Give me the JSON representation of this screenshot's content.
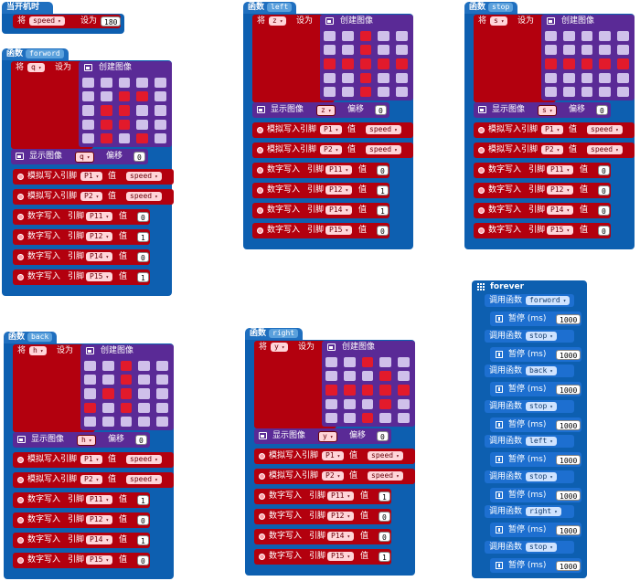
{
  "labels": {
    "set": "将",
    "set_to": "设为",
    "create_image": "创建图像",
    "show_image": "显示图像",
    "offset": "偏移",
    "analog_write_pin": "模拟写入引脚",
    "value": "值",
    "digital_write": "数字写入",
    "pin": "引脚",
    "call_function": "调用函数",
    "pause": "暂停 (ms)",
    "function": "函数",
    "dropdown_arrow": "▾"
  },
  "start": {
    "title": "当开机时",
    "variable": "speed",
    "value": "180"
  },
  "functions": [
    {
      "name": "forword",
      "variable": "q",
      "pattern": "0000000110011000110001010",
      "p1": "speed",
      "p2": "speed",
      "digital": [
        {
          "pin": "P11",
          "val": "0"
        },
        {
          "pin": "P12",
          "val": "1"
        },
        {
          "pin": "P14",
          "val": "0"
        },
        {
          "pin": "P15",
          "val": "1"
        }
      ]
    },
    {
      "name": "left",
      "variable": "z",
      "pattern": "0010000100111110010000100",
      "p1": "speed",
      "p2": "speed",
      "digital": [
        {
          "pin": "P11",
          "val": "0"
        },
        {
          "pin": "P12",
          "val": "1"
        },
        {
          "pin": "P14",
          "val": "1"
        },
        {
          "pin": "P15",
          "val": "0"
        }
      ]
    },
    {
      "name": "stop",
      "variable": "s",
      "pattern": "0000000000111110000000000",
      "p1": "speed",
      "p2": "speed",
      "digital": [
        {
          "pin": "P11",
          "val": "0"
        },
        {
          "pin": "P12",
          "val": "0"
        },
        {
          "pin": "P14",
          "val": "0"
        },
        {
          "pin": "P15",
          "val": "0"
        }
      ]
    },
    {
      "name": "back",
      "variable": "h",
      "pattern": "0010000100011001010000000",
      "p1": "speed",
      "p2": "speed",
      "digital": [
        {
          "pin": "P11",
          "val": "1"
        },
        {
          "pin": "P12",
          "val": "0"
        },
        {
          "pin": "P14",
          "val": "1"
        },
        {
          "pin": "P15",
          "val": "0"
        }
      ]
    },
    {
      "name": "right",
      "variable": "y",
      "pattern": "0010000010111110001000100",
      "p1": "speed",
      "p2": "speed",
      "digital": [
        {
          "pin": "P11",
          "val": "1"
        },
        {
          "pin": "P12",
          "val": "0"
        },
        {
          "pin": "P14",
          "val": "0"
        },
        {
          "pin": "P15",
          "val": "1"
        }
      ]
    }
  ],
  "forever": {
    "title": "forever",
    "steps": [
      {
        "call": "forword",
        "pause": "1000"
      },
      {
        "call": "stop",
        "pause": "1000"
      },
      {
        "call": "back",
        "pause": "1000"
      },
      {
        "call": "stop",
        "pause": "1000"
      },
      {
        "call": "left",
        "pause": "1000"
      },
      {
        "call": "stop",
        "pause": "1000"
      },
      {
        "call": "right",
        "pause": "1000"
      },
      {
        "call": "stop",
        "pause": "1000"
      }
    ]
  },
  "colors": {
    "event": "#1f6fbf",
    "variable": "#b3000e",
    "image": "#5a2a96",
    "pin": "#b3000e",
    "led_on": "#e21a2b",
    "led_off": "#cfc0ea"
  }
}
